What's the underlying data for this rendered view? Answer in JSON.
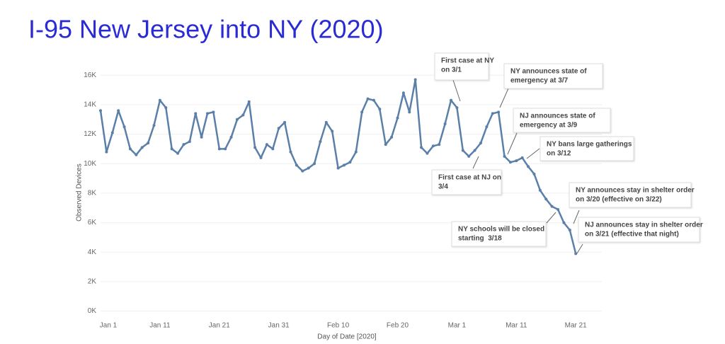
{
  "chart_data": {
    "type": "line",
    "title": "I-95 New Jersey into NY (2020)",
    "x_label": "Day of Date [2020]",
    "y_label": "Observed Devices",
    "categories": [
      "Jan 1",
      null,
      null,
      null,
      null,
      null,
      null,
      null,
      null,
      null,
      "Jan 11",
      null,
      null,
      null,
      null,
      null,
      null,
      null,
      null,
      null,
      "Jan 21",
      null,
      null,
      null,
      null,
      null,
      null,
      null,
      null,
      null,
      "Jan 31",
      null,
      null,
      null,
      null,
      null,
      null,
      null,
      null,
      null,
      "Feb 10",
      null,
      null,
      null,
      null,
      null,
      null,
      null,
      null,
      null,
      "Feb 20",
      null,
      null,
      null,
      null,
      null,
      null,
      null,
      null,
      null,
      "Mar 1",
      null,
      null,
      null,
      null,
      null,
      null,
      null,
      null,
      null,
      "Mar 11",
      null,
      null,
      null,
      null,
      null,
      null,
      null,
      null,
      null,
      "Mar 21"
    ],
    "values": [
      13600,
      10800,
      12100,
      13600,
      12500,
      11000,
      10600,
      11100,
      11400,
      12600,
      14300,
      13800,
      11000,
      10700,
      11300,
      11500,
      13400,
      11800,
      13400,
      13500,
      11000,
      11000,
      11800,
      13000,
      13300,
      14200,
      11100,
      10400,
      11300,
      11000,
      12400,
      12800,
      10800,
      9900,
      9500,
      9700,
      10000,
      11500,
      12800,
      12200,
      9700,
      9900,
      10100,
      10800,
      13500,
      14400,
      14300,
      13700,
      11300,
      11800,
      13100,
      14800,
      13500,
      15700,
      11100,
      10700,
      11200,
      11300,
      12700,
      14300,
      13800,
      10900,
      10500,
      10900,
      11400,
      12500,
      13400,
      13500,
      10500,
      10100,
      10200,
      10400,
      9800,
      9300,
      8200,
      7600,
      7100,
      6900,
      6000,
      5500,
      3900
    ],
    "color": "#5a7fa8",
    "ylim": [
      -500,
      16300
    ],
    "yticks": [
      {
        "value": 0,
        "label": "0K"
      },
      {
        "value": 2000,
        "label": "2K"
      },
      {
        "value": 4000,
        "label": "4K"
      },
      {
        "value": 6000,
        "label": "6K"
      },
      {
        "value": 8000,
        "label": "8K"
      },
      {
        "value": 10000,
        "label": "10K"
      },
      {
        "value": 12000,
        "label": "12K"
      },
      {
        "value": 14000,
        "label": "14K"
      },
      {
        "value": 16000,
        "label": "16K"
      }
    ],
    "grid": true,
    "annotations": [
      {
        "lines": [
          "First case at NY",
          "on 3/1"
        ]
      },
      {
        "lines": [
          "NY announces state of",
          "emergency at 3/7"
        ]
      },
      {
        "lines": [
          "NJ announces state of",
          "emergency at 3/9"
        ]
      },
      {
        "lines": [
          "NY bans large gatherings",
          "on 3/12"
        ]
      },
      {
        "lines": [
          "First case at NJ on",
          "3/4"
        ]
      },
      {
        "lines": [
          "NY schools will be closed",
          "starting  3/18"
        ]
      },
      {
        "lines": [
          "NY announces stay in shelter order",
          "on 3/20 (effective on 3/22)"
        ]
      },
      {
        "lines": [
          "NJ announces stay in shelter order",
          "on 3/21 (effective that night)"
        ]
      }
    ]
  }
}
